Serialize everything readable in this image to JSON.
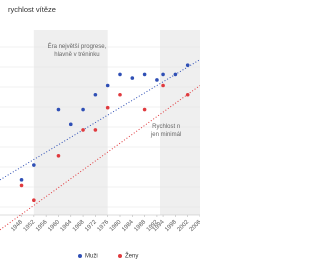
{
  "chart_data": {
    "type": "scatter",
    "title": "rychlost vítěze",
    "annotations": [
      {
        "lines": [
          "Éra největší progrese,",
          "hlavně v tréninku"
        ],
        "x": 1966,
        "y": 91
      },
      {
        "lines": [
          "Rychlost n",
          "jen minimál"
        ],
        "x": 1995,
        "y": 48
      }
    ],
    "shaded_ranges": [
      [
        1952,
        1976
      ],
      [
        1993,
        2006
      ]
    ],
    "xlim": [
      1941,
      2006
    ],
    "ylim": [
      0,
      100
    ],
    "xticks": [
      1948,
      1952,
      1956,
      1960,
      1964,
      1968,
      1972,
      1976,
      1980,
      1984,
      1988,
      1992,
      1994,
      1998,
      2002,
      2006
    ],
    "series": [
      {
        "name": "Muži",
        "color": "#2f4fb5",
        "x": [
          1948,
          1952,
          1960,
          1964,
          1968,
          1972,
          1976,
          1980,
          1984,
          1988,
          1992,
          1994,
          1998,
          2002
        ],
        "values": [
          19,
          27,
          57,
          49,
          57,
          65,
          70,
          76,
          74,
          76,
          73,
          76,
          76,
          81
        ],
        "trend": [
          19,
          84
        ]
      },
      {
        "name": "Ženy",
        "color": "#e03a3e",
        "x": [
          1948,
          1952,
          1960,
          1968,
          1972,
          1976,
          1980,
          1988,
          1994,
          2002
        ],
        "values": [
          16,
          8,
          32,
          46,
          46,
          58,
          65,
          57,
          70,
          65
        ],
        "trend": [
          -8,
          70
        ]
      }
    ]
  }
}
